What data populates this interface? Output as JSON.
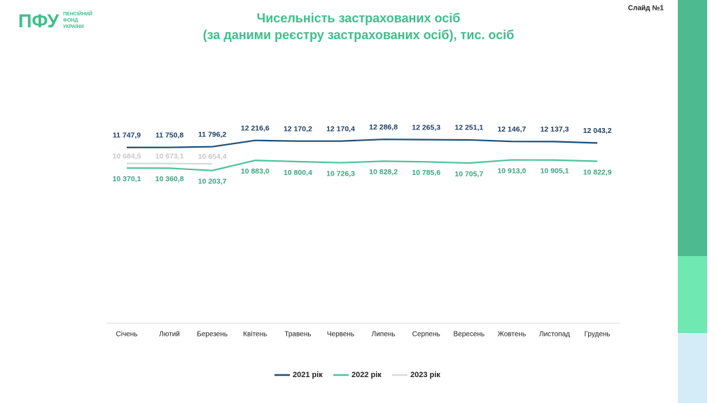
{
  "slide": {
    "number": "Слайд №1",
    "logo": {
      "mark": "ПФУ",
      "lines": [
        "ПЕНСІЙНИЙ",
        "ФОНД",
        "УКРАЇНИ"
      ]
    }
  },
  "chart_data": {
    "type": "line",
    "title": "Чисельність застрахованих осіб",
    "subtitle": "(за даними реєстру застрахованих осіб), тис. осіб",
    "categories": [
      "Січень",
      "Лютий",
      "Березень",
      "Квітень",
      "Травень",
      "Червень",
      "Липень",
      "Серпень",
      "Вересень",
      "Жовтень",
      "Листопад",
      "Грудень"
    ],
    "ylim": [
      0,
      18000
    ],
    "series": [
      {
        "name": "2021 рік",
        "color": "#1f4e79",
        "values": [
          11747.9,
          11750.8,
          11796.2,
          12216.6,
          12170.2,
          12170.4,
          12286.8,
          12265.3,
          12251.1,
          12146.7,
          12137.3,
          12043.2
        ],
        "value_labels": [
          "11 747,9",
          "11 750,8",
          "11 796,2",
          "12 216,6",
          "12 170,2",
          "12 170,4",
          "12 286,8",
          "12 265,3",
          "12 251,1",
          "12 146,7",
          "12 137,3",
          "12 043,2"
        ]
      },
      {
        "name": "2022 рік",
        "color": "#4fc39a",
        "values": [
          10370.1,
          10360.8,
          10203.7,
          10883.0,
          10800.4,
          10726.3,
          10828.2,
          10785.6,
          10705.7,
          10913.0,
          10905.1,
          10822.9
        ],
        "value_labels": [
          "10 370,1",
          "10 360,8",
          "10 203,7",
          "10 883,0",
          "10 800,4",
          "10 726,3",
          "10 828,2",
          "10 785,6",
          "10 705,7",
          "10 913,0",
          "10 905,1",
          "10 822,9"
        ]
      },
      {
        "name": "2023 рік",
        "color": "#d9d9d9",
        "values": [
          10684.5,
          10673.1,
          10654.4,
          null,
          null,
          null,
          null,
          null,
          null,
          null,
          null,
          null
        ],
        "value_labels": [
          "10 684,5",
          "10 673,1",
          "10 654,4",
          null,
          null,
          null,
          null,
          null,
          null,
          null,
          null,
          null
        ]
      }
    ]
  }
}
